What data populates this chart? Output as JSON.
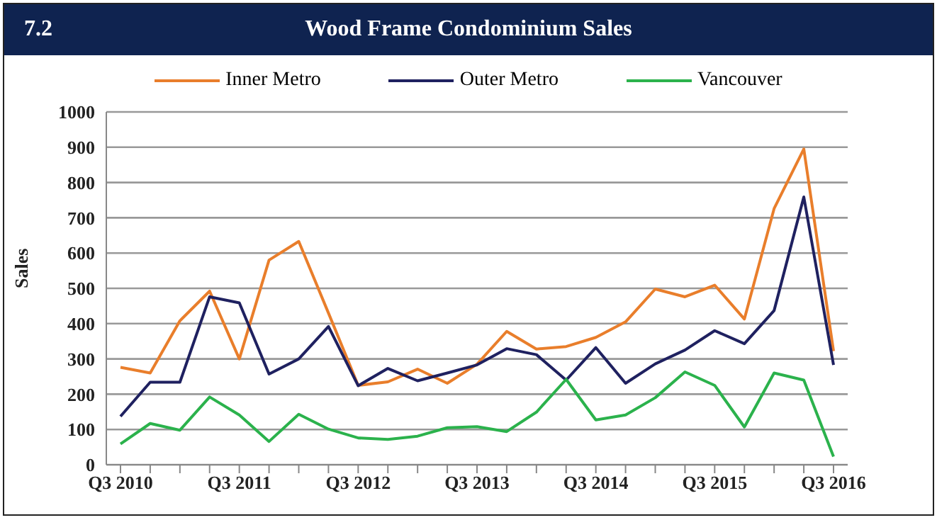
{
  "chart_data": {
    "type": "line",
    "title": "Wood Frame Condominium Sales",
    "annotations": [
      "7.2"
    ],
    "ylabel": "Sales",
    "categories": [
      "Q3 2010",
      null,
      null,
      null,
      "Q3 2011",
      null,
      null,
      null,
      "Q3 2012",
      null,
      null,
      null,
      "Q3 2013",
      null,
      null,
      null,
      "Q3 2014",
      null,
      null,
      null,
      "Q3 2015",
      null,
      null,
      null,
      "Q3 2016"
    ],
    "series": [
      {
        "name": "Inner Metro",
        "color": "#e97e2b",
        "values": [
          276,
          260,
          408,
          492,
          300,
          580,
          633,
          430,
          225,
          235,
          271,
          231,
          285,
          378,
          328,
          335,
          361,
          405,
          498,
          476,
          509,
          413,
          726,
          895,
          322
        ]
      },
      {
        "name": "Outer Metro",
        "color": "#1f2160",
        "values": [
          137,
          234,
          234,
          476,
          459,
          257,
          300,
          392,
          224,
          273,
          238,
          260,
          283,
          329,
          312,
          240,
          332,
          231,
          286,
          325,
          380,
          343,
          437,
          759,
          283
        ]
      },
      {
        "name": "Vancouver",
        "color": "#2bb24c",
        "values": [
          59,
          117,
          98,
          192,
          141,
          66,
          143,
          101,
          76,
          72,
          81,
          105,
          108,
          94,
          149,
          242,
          127,
          141,
          190,
          263,
          225,
          107,
          260,
          240,
          23
        ]
      }
    ],
    "ylim": [
      0,
      1000
    ],
    "yticks": [
      0,
      100,
      200,
      300,
      400,
      500,
      600,
      700,
      800,
      900,
      1000
    ],
    "grid": "y",
    "legend": "top",
    "marker": "none",
    "line_style": "solid"
  }
}
